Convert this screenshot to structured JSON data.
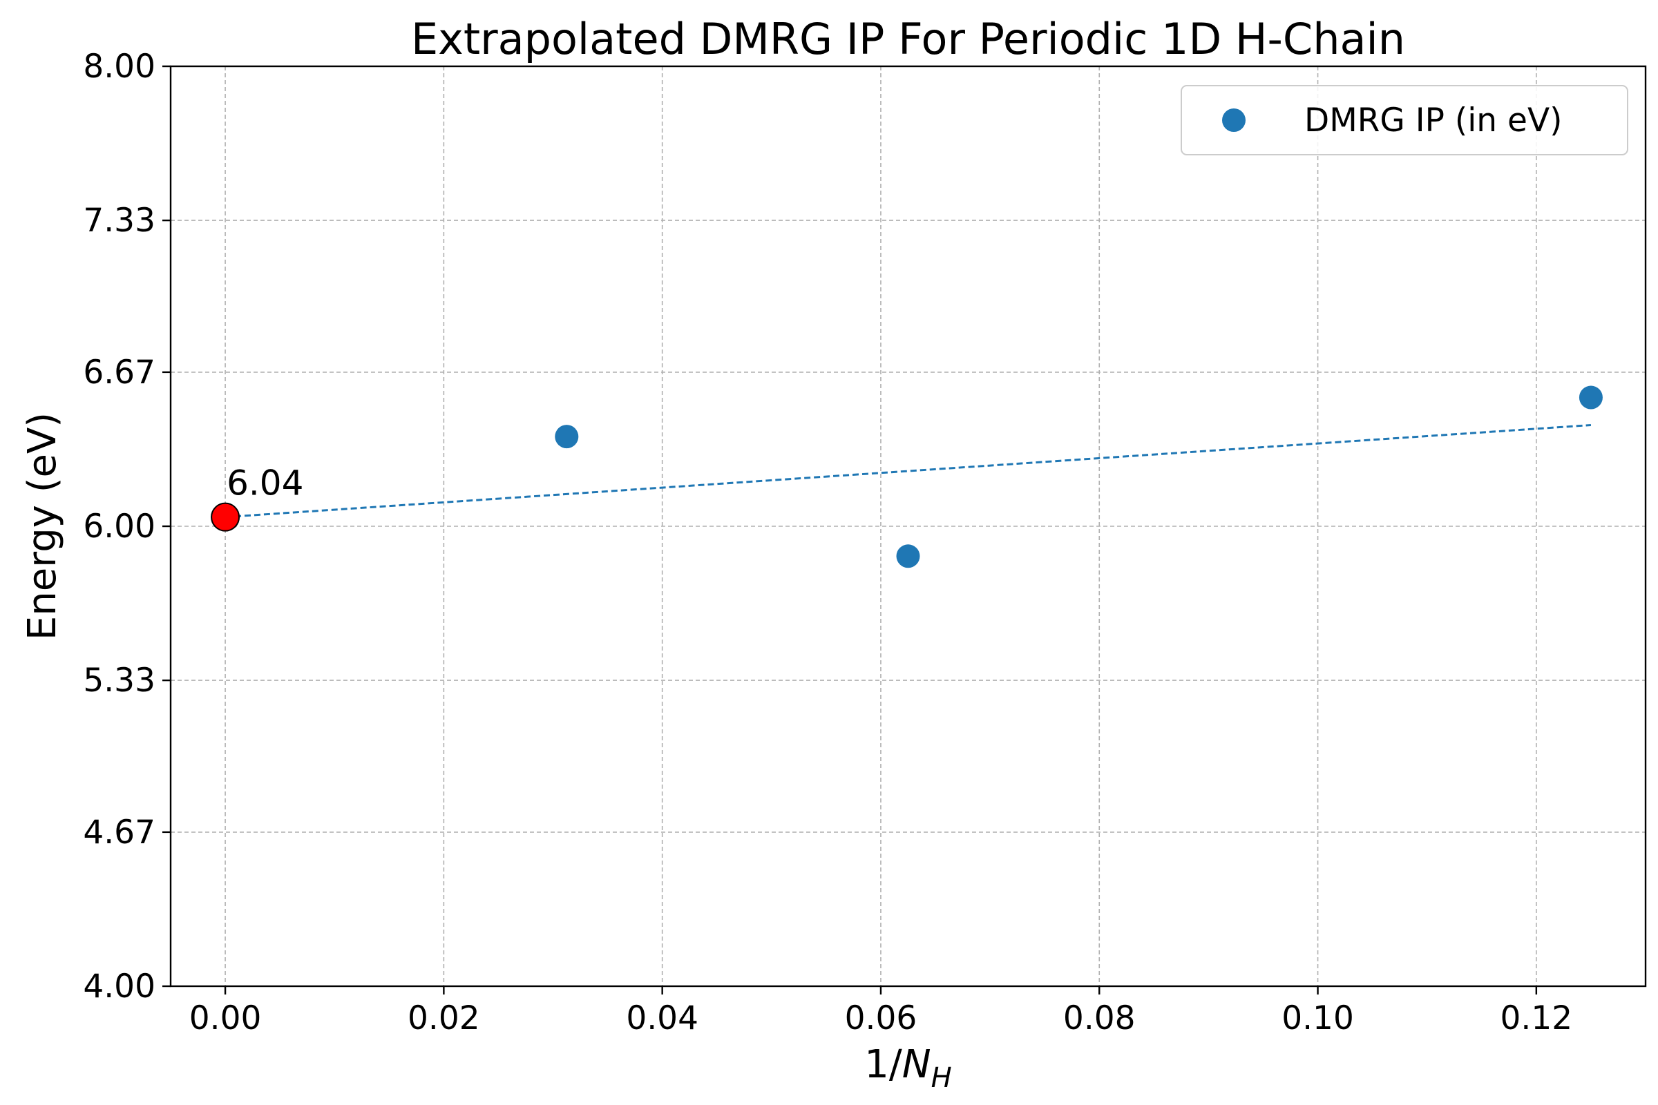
{
  "chart_data": {
    "type": "scatter",
    "title": "Extrapolated DMRG IP For Periodic 1D H-Chain",
    "xlabel_main": "1/",
    "xlabel_italic": "N",
    "xlabel_sub": "H",
    "ylabel": "Energy (eV)",
    "xlim": [
      -0.005,
      0.13
    ],
    "ylim": [
      4.0,
      8.0
    ],
    "xticks": [
      0.0,
      0.02,
      0.04,
      0.06,
      0.08,
      0.1,
      0.12
    ],
    "xtick_labels": [
      "0.00",
      "0.02",
      "0.04",
      "0.06",
      "0.08",
      "0.10",
      "0.12"
    ],
    "yticks": [
      4.0,
      4.67,
      5.33,
      6.0,
      6.67,
      7.33,
      8.0
    ],
    "ytick_labels": [
      "4.00",
      "4.67",
      "5.33",
      "6.00",
      "6.67",
      "7.33",
      "8.00"
    ],
    "grid": true,
    "legend_position": "top-right",
    "series": [
      {
        "name": "DMRG IP (in eV)",
        "color": "#1f77b4",
        "x": [
          0.03125,
          0.0625,
          0.125
        ],
        "y": [
          6.39,
          5.87,
          6.56
        ]
      }
    ],
    "fit_line": {
      "color": "#1f77b4",
      "style": "dashed",
      "x": [
        0.0,
        0.125
      ],
      "y": [
        6.04,
        6.44
      ]
    },
    "extrapolated_point": {
      "x": 0.0,
      "y": 6.04,
      "color": "#ff0000",
      "label": "6.04"
    }
  }
}
